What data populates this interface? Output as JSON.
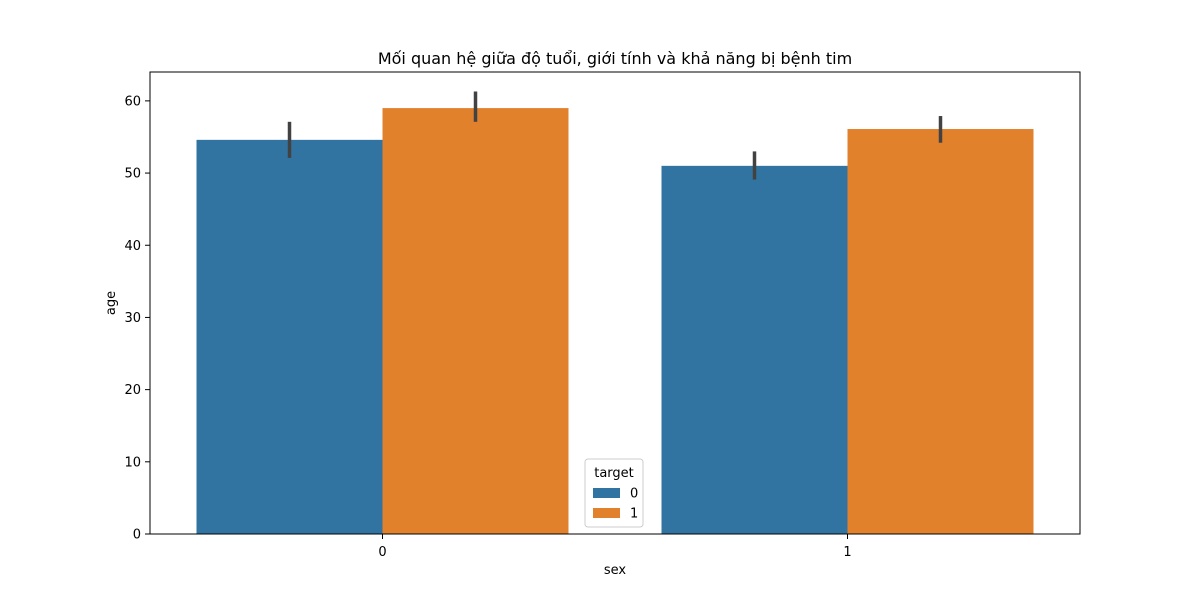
{
  "chart_data": {
    "type": "bar",
    "title": "Mối quan hệ giữa độ tuổi, giới tính và khả năng bị bệnh tim",
    "xlabel": "sex",
    "ylabel": "age",
    "categories": [
      "0",
      "1"
    ],
    "series": [
      {
        "name": "0",
        "color": "#3274a1",
        "values": [
          54.6,
          51.0
        ],
        "ci_low": [
          52.1,
          49.1
        ],
        "ci_high": [
          57.1,
          53.0
        ]
      },
      {
        "name": "1",
        "color": "#e1812c",
        "values": [
          59.0,
          56.1
        ],
        "ci_low": [
          57.1,
          54.2
        ],
        "ci_high": [
          61.3,
          57.9
        ]
      }
    ],
    "ylim": [
      0,
      64
    ],
    "yticks": [
      0,
      10,
      20,
      30,
      40,
      50,
      60
    ],
    "legend": {
      "title": "target",
      "position": "lower-center"
    },
    "grid": false
  }
}
